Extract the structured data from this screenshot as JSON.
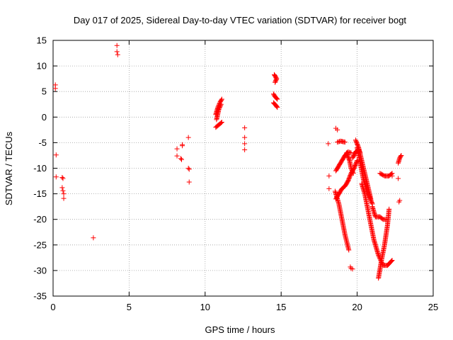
{
  "chart_data": {
    "type": "scatter",
    "title": "Day 017 of 2025, Sidereal Day-to-day VTEC variation (SDTVAR) for receiver bogt",
    "xlabel": "GPS time / hours",
    "ylabel": "SDTVAR / TECUs",
    "xlim": [
      0,
      25
    ],
    "ylim": [
      -35,
      15
    ],
    "xticks": [
      0,
      5,
      10,
      15,
      20,
      25
    ],
    "yticks": [
      -35,
      -30,
      -25,
      -20,
      -15,
      -10,
      -5,
      0,
      5,
      10,
      15
    ],
    "grid": true,
    "marker": "+",
    "color": "#ff0000",
    "series": [
      {
        "name": "SDTVAR",
        "points": [
          [
            0.15,
            6.3
          ],
          [
            0.15,
            5.6
          ],
          [
            0.2,
            -7.4
          ],
          [
            0.2,
            -11.7
          ],
          [
            0.6,
            -11.8
          ],
          [
            0.65,
            -12.0
          ],
          [
            0.6,
            -13.8
          ],
          [
            0.65,
            -14.4
          ],
          [
            0.7,
            -15.0
          ],
          [
            0.7,
            -15.9
          ],
          [
            2.65,
            -23.6
          ],
          [
            4.2,
            14.0
          ],
          [
            4.2,
            12.8
          ],
          [
            4.25,
            12.2
          ],
          [
            8.15,
            -6.2
          ],
          [
            8.15,
            -7.6
          ],
          [
            8.4,
            -8.1
          ],
          [
            8.45,
            -8.3
          ],
          [
            8.5,
            -5.4
          ],
          [
            8.5,
            -5.6
          ],
          [
            8.9,
            -4.0
          ],
          [
            8.9,
            -10.0
          ],
          [
            8.95,
            -10.2
          ],
          [
            8.95,
            -12.7
          ],
          [
            12.6,
            -2.1
          ],
          [
            12.6,
            -4.0
          ],
          [
            12.6,
            -5.2
          ],
          [
            12.6,
            -6.4
          ],
          [
            18.1,
            -5.2
          ],
          [
            18.15,
            -11.5
          ],
          [
            18.15,
            -14.0
          ],
          [
            18.6,
            -2.2
          ],
          [
            18.7,
            -2.5
          ],
          [
            19.55,
            -29.3
          ],
          [
            19.6,
            -29.6
          ],
          [
            19.7,
            -29.7
          ],
          [
            22.3,
            -11.5
          ],
          [
            22.7,
            -12.0
          ],
          [
            22.75,
            -16.6
          ],
          [
            22.8,
            -16.3
          ]
        ],
        "segments": [
          [
            [
              10.7,
              0.5
            ],
            [
              10.85,
              2.0
            ],
            [
              11.0,
              3.0
            ],
            [
              11.1,
              3.5
            ]
          ],
          [
            [
              10.75,
              -0.5
            ],
            [
              10.9,
              1.5
            ],
            [
              11.05,
              2.5
            ]
          ],
          [
            [
              10.7,
              -2.0
            ],
            [
              10.9,
              -1.5
            ],
            [
              11.1,
              -1.0
            ]
          ],
          [
            [
              14.55,
              8.3
            ],
            [
              14.7,
              7.5
            ],
            [
              14.6,
              6.8
            ]
          ],
          [
            [
              14.5,
              4.5
            ],
            [
              14.6,
              4.0
            ],
            [
              14.75,
              3.5
            ]
          ],
          [
            [
              14.5,
              2.8
            ],
            [
              14.65,
              2.3
            ],
            [
              14.75,
              1.9
            ]
          ],
          [
            [
              18.55,
              -14.5
            ],
            [
              18.8,
              -17.0
            ],
            [
              19.0,
              -20.0
            ],
            [
              19.2,
              -23.0
            ],
            [
              19.45,
              -26.0
            ]
          ],
          [
            [
              18.6,
              -10.5
            ],
            [
              18.8,
              -9.5
            ],
            [
              19.0,
              -8.5
            ],
            [
              19.2,
              -7.5
            ],
            [
              19.4,
              -6.8
            ],
            [
              19.6,
              -7.0
            ]
          ],
          [
            [
              18.7,
              -4.9
            ],
            [
              18.9,
              -4.7
            ],
            [
              19.2,
              -4.9
            ]
          ],
          [
            [
              19.3,
              -7.0
            ],
            [
              19.5,
              -8.5
            ],
            [
              19.6,
              -10.0
            ],
            [
              19.75,
              -11.0
            ]
          ],
          [
            [
              18.6,
              -16.0
            ],
            [
              18.8,
              -15.0
            ],
            [
              19.0,
              -14.0
            ],
            [
              19.2,
              -13.5
            ],
            [
              19.4,
              -12.5
            ],
            [
              19.6,
              -11.0
            ],
            [
              19.8,
              -10.0
            ],
            [
              20.0,
              -8.5
            ]
          ],
          [
            [
              19.7,
              -8.0
            ],
            [
              19.9,
              -6.8
            ],
            [
              20.1,
              -6.3
            ],
            [
              20.2,
              -7.0
            ]
          ],
          [
            [
              19.9,
              -4.5
            ],
            [
              20.1,
              -6.0
            ],
            [
              20.3,
              -8.5
            ],
            [
              20.5,
              -11.0
            ],
            [
              20.7,
              -13.5
            ],
            [
              20.9,
              -16.0
            ]
          ],
          [
            [
              20.0,
              -6.0
            ],
            [
              20.2,
              -9.0
            ],
            [
              20.4,
              -12.0
            ],
            [
              20.6,
              -14.0
            ],
            [
              20.8,
              -15.5
            ],
            [
              21.0,
              -17.0
            ]
          ],
          [
            [
              20.3,
              -13.0
            ],
            [
              20.5,
              -15.0
            ],
            [
              20.7,
              -18.0
            ],
            [
              20.9,
              -21.0
            ],
            [
              21.1,
              -24.0
            ],
            [
              21.4,
              -27.0
            ],
            [
              21.7,
              -29.0
            ],
            [
              22.0,
              -29.0
            ],
            [
              22.3,
              -28.0
            ]
          ],
          [
            [
              21.0,
              -17.5
            ],
            [
              21.2,
              -19.5
            ],
            [
              21.5,
              -19.5
            ],
            [
              21.7,
              -20.0
            ],
            [
              21.9,
              -20.0
            ]
          ],
          [
            [
              21.4,
              -31.5
            ],
            [
              21.6,
              -28.0
            ],
            [
              21.8,
              -25.0
            ],
            [
              22.0,
              -21.0
            ],
            [
              22.1,
              -18.0
            ]
          ],
          [
            [
              21.5,
              -11.0
            ],
            [
              21.8,
              -11.5
            ],
            [
              22.1,
              -11.5
            ],
            [
              22.3,
              -11.0
            ]
          ],
          [
            [
              22.7,
              -9.0
            ],
            [
              22.8,
              -8.0
            ],
            [
              22.9,
              -7.5
            ]
          ]
        ]
      }
    ]
  }
}
